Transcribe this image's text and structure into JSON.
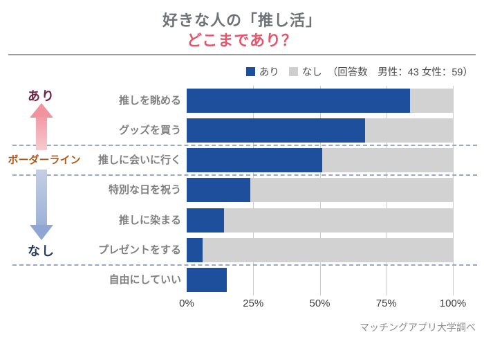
{
  "title": {
    "line1": "好きな人の「推し活」",
    "line2": "どこまであり？"
  },
  "legend": {
    "ari_label": "あり",
    "nashi_label": "なし",
    "note": "（回答数　男性：43 女性：59）"
  },
  "annotations": {
    "top": "あり",
    "middle": "ボーダーライン",
    "bottom": "なし"
  },
  "footer": "マッチングアプリ大学調べ",
  "colors": {
    "ari_bar": "#1e4f9c",
    "nashi_bar": "#d2d2d2",
    "title_accent": "#e45569",
    "ari_text": "#6e2340",
    "borderline_text": "#b05a1d",
    "nashi_text": "#25395c",
    "separator": "#97a7c9",
    "arrow_pink": "#f0939f",
    "arrow_blue": "#8fa6d2"
  },
  "chart_data": {
    "type": "bar",
    "orientation": "horizontal",
    "stacked": true,
    "title": "好きな人の「推し活」どこまであり？",
    "categories": [
      "推しを眺める",
      "グッズを買う",
      "推しに会いに行く",
      "特別な日を祝う",
      "推しに染まる",
      "プレゼントをする",
      "自由にしていい"
    ],
    "series": [
      {
        "name": "あり",
        "color": "#1e4f9c",
        "values": [
          84,
          67,
          51,
          24,
          14,
          6,
          15
        ]
      },
      {
        "name": "なし",
        "color": "#d2d2d2",
        "values": [
          16,
          33,
          49,
          76,
          86,
          94,
          0
        ]
      }
    ],
    "xlim": [
      0,
      100
    ],
    "x_ticks": [
      "0%",
      "25%",
      "50%",
      "75%",
      "100%"
    ],
    "x_tick_values": [
      0,
      25,
      50,
      75,
      100
    ],
    "grid": true,
    "legend_position": "top-right",
    "separators_before_category_index": [
      2,
      3,
      6
    ],
    "note": "last category has no なし bar"
  }
}
